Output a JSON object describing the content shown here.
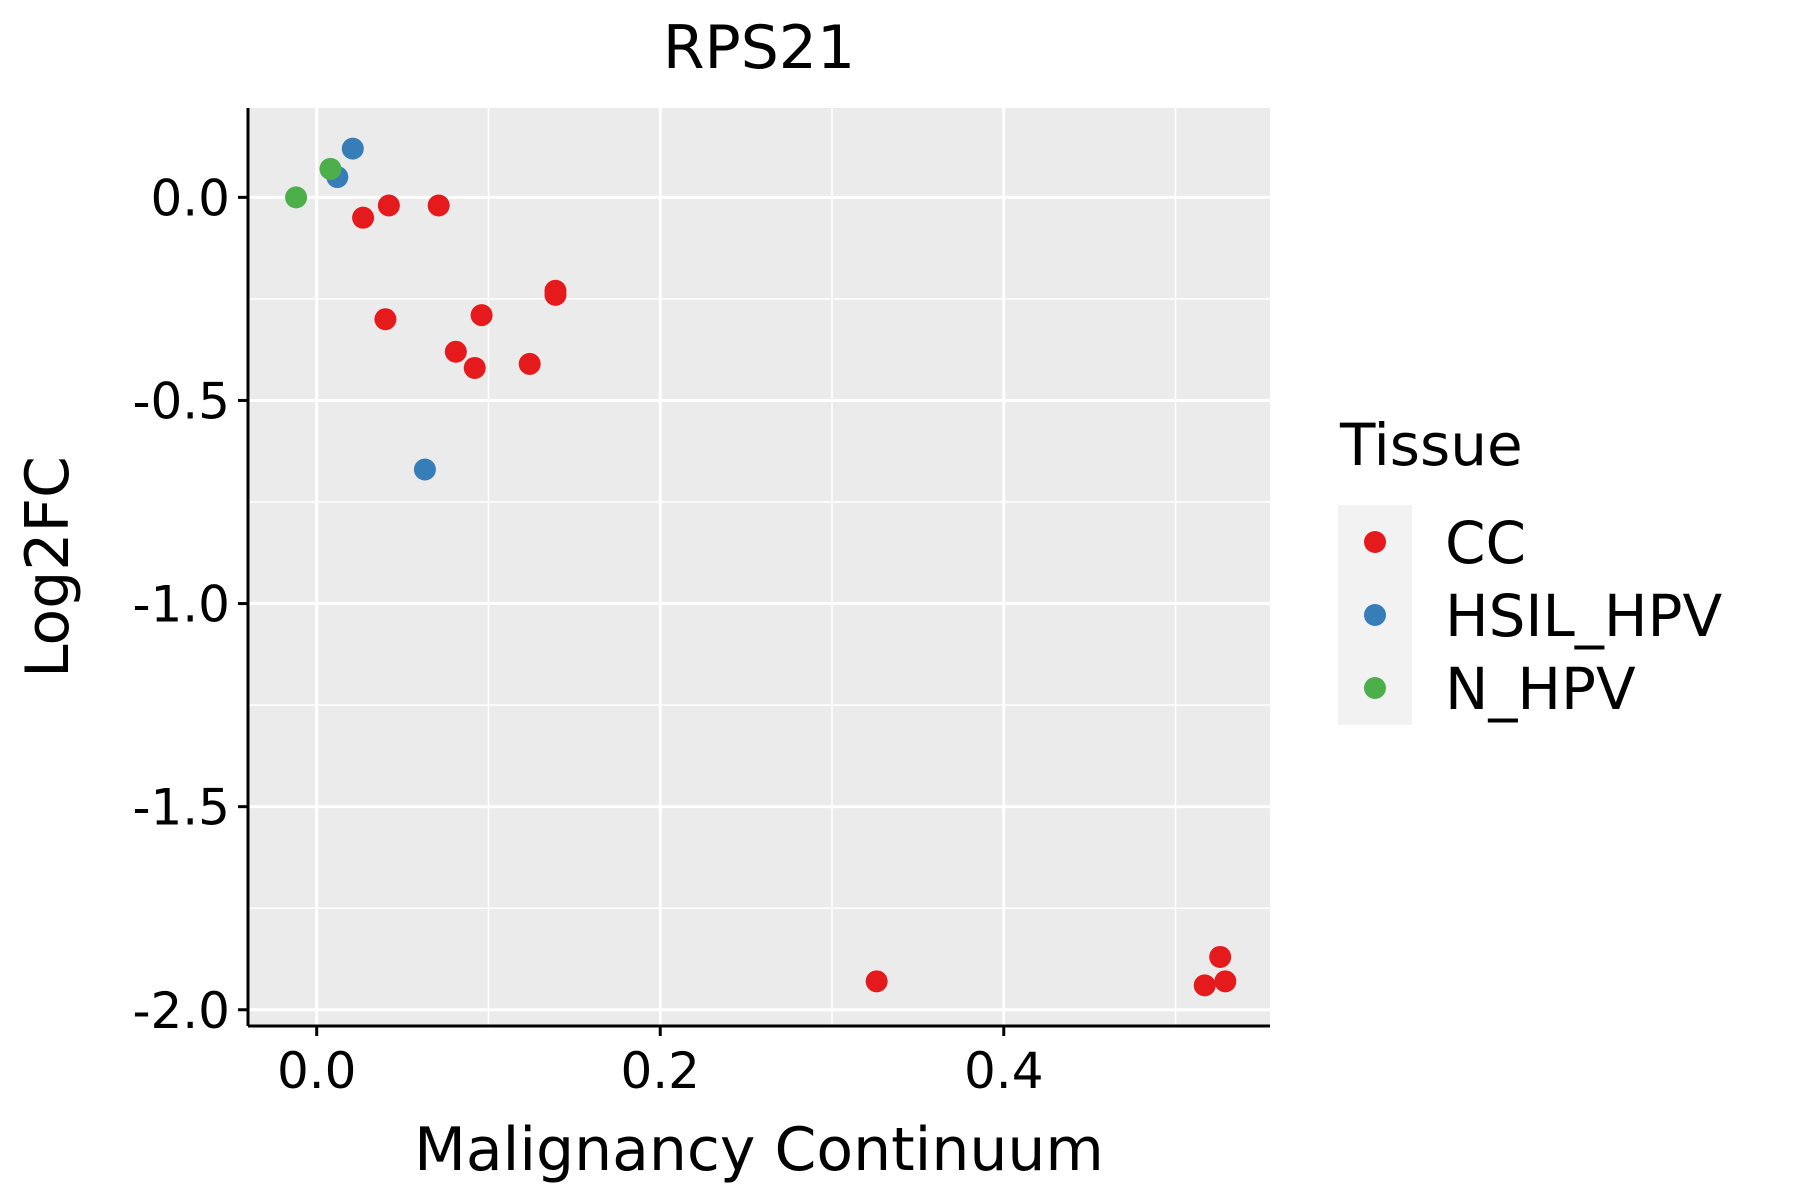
{
  "chart_data": {
    "type": "scatter",
    "title": "RPS21",
    "xlabel": "Malignancy Continuum",
    "ylabel": "Log2FC",
    "xlim": [
      -0.04,
      0.555
    ],
    "ylim": [
      -2.04,
      0.22
    ],
    "x_ticks": [
      0.0,
      0.2,
      0.4
    ],
    "x_tick_labels": [
      "0.0",
      "0.2",
      "0.4"
    ],
    "y_ticks": [
      0.0,
      -0.5,
      -1.0,
      -1.5,
      -2.0
    ],
    "y_tick_labels": [
      "0.0",
      "-0.5",
      "-1.0",
      "-1.5",
      "-2.0"
    ],
    "grid": true,
    "legend": {
      "title": "Tissue",
      "placement": "right",
      "entries": [
        {
          "name": "CC",
          "color": "#e41a1c"
        },
        {
          "name": "HSIL_HPV",
          "color": "#377eb8"
        },
        {
          "name": "N_HPV",
          "color": "#4daf4a"
        }
      ]
    },
    "series": [
      {
        "name": "CC",
        "color": "#e41a1c",
        "points": [
          {
            "x": 0.027,
            "y": -0.05
          },
          {
            "x": 0.042,
            "y": -0.02
          },
          {
            "x": 0.071,
            "y": -0.02
          },
          {
            "x": 0.04,
            "y": -0.3
          },
          {
            "x": 0.081,
            "y": -0.38
          },
          {
            "x": 0.092,
            "y": -0.42
          },
          {
            "x": 0.096,
            "y": -0.29
          },
          {
            "x": 0.124,
            "y": -0.41
          },
          {
            "x": 0.139,
            "y": -0.23
          },
          {
            "x": 0.139,
            "y": -0.24
          },
          {
            "x": 0.326,
            "y": -1.93
          },
          {
            "x": 0.517,
            "y": -1.94
          },
          {
            "x": 0.526,
            "y": -1.87
          },
          {
            "x": 0.529,
            "y": -1.93
          }
        ]
      },
      {
        "name": "HSIL_HPV",
        "color": "#377eb8",
        "points": [
          {
            "x": 0.021,
            "y": 0.12
          },
          {
            "x": 0.012,
            "y": 0.05
          },
          {
            "x": 0.063,
            "y": -0.67
          }
        ]
      },
      {
        "name": "N_HPV",
        "color": "#4daf4a",
        "points": [
          {
            "x": -0.012,
            "y": 0.0
          },
          {
            "x": 0.008,
            "y": 0.07
          }
        ]
      }
    ]
  }
}
